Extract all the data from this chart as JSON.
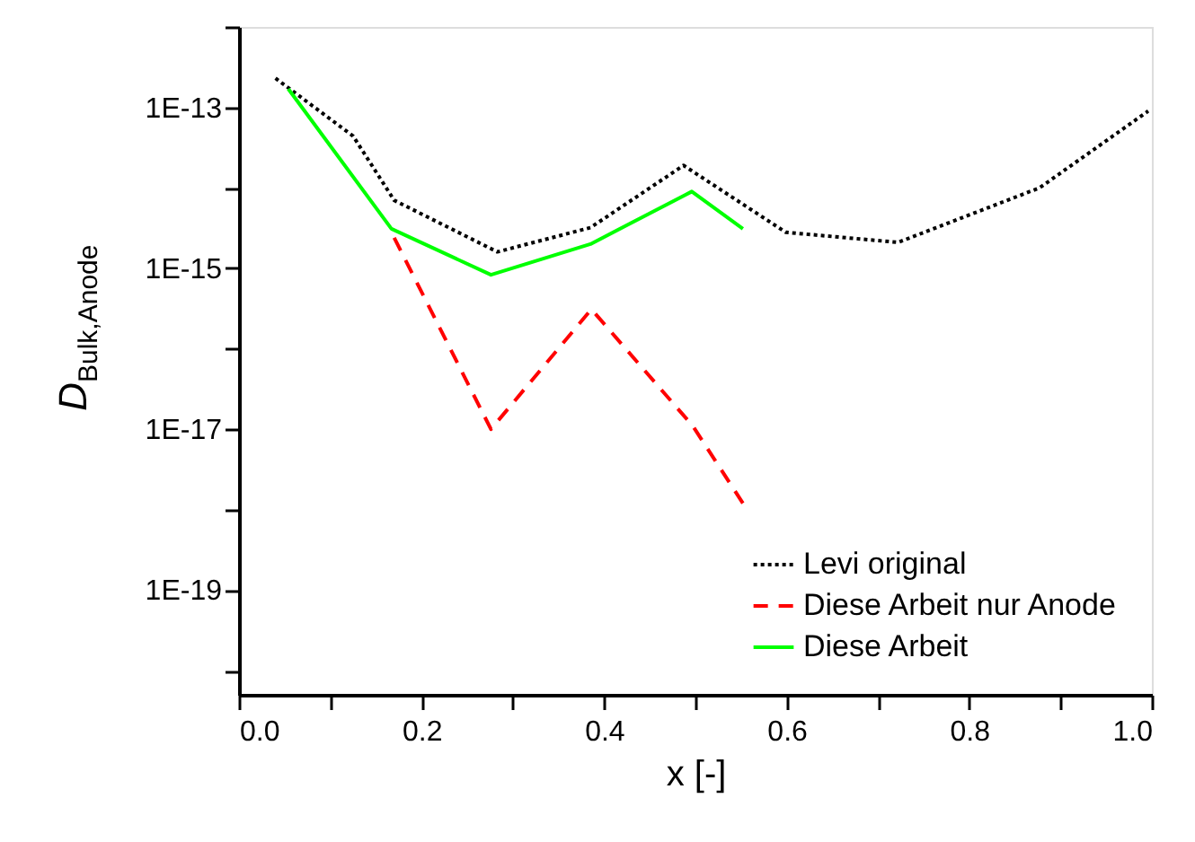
{
  "chart_data": {
    "type": "line",
    "xlabel": "x [-]",
    "ylabel": "D$_{Bulk,Anode}$",
    "log": "y",
    "grid": false,
    "legend": "bottom right",
    "xlim": [
      0,
      1
    ],
    "ylim": [
      5e-21,
      1e-12
    ],
    "xticks": [
      {
        "value": 0,
        "label": "0.0"
      },
      {
        "value": 0.1,
        "label": null
      },
      {
        "value": 0.2,
        "label": "0.2"
      },
      {
        "value": 0.3,
        "label": null
      },
      {
        "value": 0.4,
        "label": "0.4"
      },
      {
        "value": 0.5,
        "label": null
      },
      {
        "value": 0.6,
        "label": "0.6"
      },
      {
        "value": 0.7,
        "label": null
      },
      {
        "value": 0.8,
        "label": "0.8"
      },
      {
        "value": 0.9,
        "label": null
      },
      {
        "value": 1.0,
        "label": "1.0"
      }
    ],
    "yticks": [
      {
        "value": 1e-20,
        "label": null
      },
      {
        "value": 1e-19,
        "label": "1E-19"
      },
      {
        "value": 1e-18,
        "label": null
      },
      {
        "value": 1e-17,
        "label": "1E-17"
      },
      {
        "value": 1e-16,
        "label": null
      },
      {
        "value": 1e-15,
        "label": "1E-15"
      },
      {
        "value": 1e-14,
        "label": null
      },
      {
        "value": 1e-13,
        "label": "1E-13"
      },
      {
        "value": 1e-12,
        "label": null
      }
    ],
    "series": [
      {
        "name": "Levi original",
        "color": "#000000",
        "line_style": "dotted",
        "x": [
          0.04,
          0.125,
          0.17,
          0.283,
          0.385,
          0.487,
          0.599,
          0.722,
          0.877,
          0.996
        ],
        "values": [
          2.3e-13,
          4.4e-14,
          7e-15,
          1.6e-15,
          3.2e-15,
          1.9e-14,
          2.8e-15,
          2.1e-15,
          1e-14,
          9e-14
        ]
      },
      {
        "name": "Diese Arbeit nur Anode",
        "color": "#ff0000",
        "line_style": "dashed",
        "x": [
          0.17,
          0.276,
          0.386,
          0.497,
          0.552
        ],
        "values": [
          2.4e-15,
          1e-17,
          3.1e-16,
          1.1e-17,
          1.2e-18
        ]
      },
      {
        "name": "Diese Arbeit",
        "color": "#00ff00",
        "line_style": "solid",
        "x": [
          0.054,
          0.167,
          0.276,
          0.385,
          0.496,
          0.552
        ],
        "values": [
          1.7e-13,
          3.1e-15,
          8.3e-16,
          2e-15,
          9e-15,
          3.1e-15
        ]
      }
    ]
  }
}
